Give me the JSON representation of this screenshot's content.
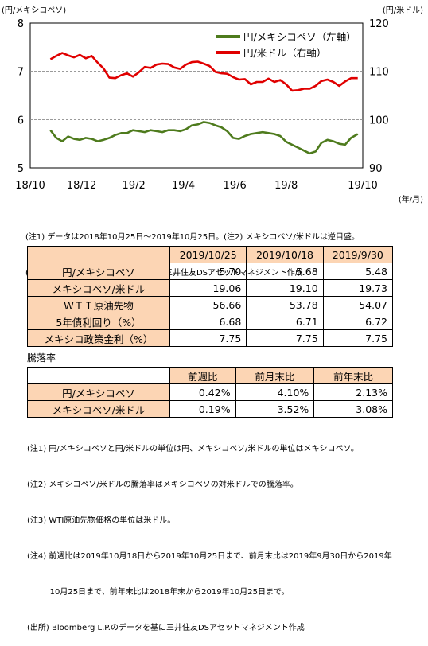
{
  "chart_data": {
    "type": "line",
    "left_axis": {
      "unit_label": "(円/メキシコペソ)",
      "ticks": [
        5,
        6,
        7,
        8
      ],
      "ylim": [
        5,
        8
      ]
    },
    "right_axis": {
      "unit_label": "(円/米ドル)",
      "ticks": [
        90,
        100,
        110,
        120
      ],
      "ylim": [
        90,
        120
      ]
    },
    "x_axis": {
      "unit_label": "(年/月)",
      "ticks": [
        "18/10",
        "18/12",
        "19/2",
        "19/4",
        "19/6",
        "19/8",
        "19/10"
      ]
    },
    "grid": "dashed horizontal at 6 and 7 (left axis)",
    "legend_position": "top-right",
    "series": [
      {
        "name": "円/メキシコペソ（左軸）",
        "axis": "left",
        "color": "#4e7b1d",
        "x": [
          "2018-10-25",
          "2018-11-01",
          "2018-11-08",
          "2018-11-15",
          "2018-11-22",
          "2018-11-29",
          "2018-12-06",
          "2018-12-13",
          "2018-12-20",
          "2018-12-27",
          "2019-01-03",
          "2019-01-10",
          "2019-01-17",
          "2019-01-24",
          "2019-01-31",
          "2019-02-07",
          "2019-02-14",
          "2019-02-21",
          "2019-02-28",
          "2019-03-07",
          "2019-03-14",
          "2019-03-21",
          "2019-03-28",
          "2019-04-04",
          "2019-04-11",
          "2019-04-18",
          "2019-04-25",
          "2019-05-02",
          "2019-05-09",
          "2019-05-16",
          "2019-05-23",
          "2019-05-30",
          "2019-06-06",
          "2019-06-13",
          "2019-06-20",
          "2019-06-27",
          "2019-07-04",
          "2019-07-11",
          "2019-07-18",
          "2019-07-25",
          "2019-08-01",
          "2019-08-08",
          "2019-08-15",
          "2019-08-22",
          "2019-08-29",
          "2019-09-05",
          "2019-09-12",
          "2019-09-19",
          "2019-09-26",
          "2019-10-03",
          "2019-10-10",
          "2019-10-17",
          "2019-10-25"
        ],
        "values": [
          5.78,
          5.62,
          5.55,
          5.65,
          5.6,
          5.58,
          5.62,
          5.6,
          5.55,
          5.58,
          5.62,
          5.68,
          5.72,
          5.72,
          5.78,
          5.76,
          5.74,
          5.78,
          5.76,
          5.74,
          5.78,
          5.78,
          5.76,
          5.8,
          5.88,
          5.9,
          5.95,
          5.93,
          5.88,
          5.84,
          5.76,
          5.62,
          5.6,
          5.66,
          5.7,
          5.72,
          5.74,
          5.72,
          5.7,
          5.66,
          5.54,
          5.48,
          5.42,
          5.36,
          5.3,
          5.34,
          5.52,
          5.58,
          5.55,
          5.5,
          5.48,
          5.62,
          5.7
        ]
      },
      {
        "name": "円/米ドル（右軸）",
        "axis": "right",
        "color": "#e00000",
        "x": [
          "2018-10-25",
          "2018-11-01",
          "2018-11-08",
          "2018-11-15",
          "2018-11-22",
          "2018-11-29",
          "2018-12-06",
          "2018-12-13",
          "2018-12-20",
          "2018-12-27",
          "2019-01-03",
          "2019-01-10",
          "2019-01-17",
          "2019-01-24",
          "2019-01-31",
          "2019-02-07",
          "2019-02-14",
          "2019-02-21",
          "2019-02-28",
          "2019-03-07",
          "2019-03-14",
          "2019-03-21",
          "2019-03-28",
          "2019-04-04",
          "2019-04-11",
          "2019-04-18",
          "2019-04-25",
          "2019-05-02",
          "2019-05-09",
          "2019-05-16",
          "2019-05-23",
          "2019-05-30",
          "2019-06-06",
          "2019-06-13",
          "2019-06-20",
          "2019-06-27",
          "2019-07-04",
          "2019-07-11",
          "2019-07-18",
          "2019-07-25",
          "2019-08-01",
          "2019-08-08",
          "2019-08-15",
          "2019-08-22",
          "2019-08-29",
          "2019-09-05",
          "2019-09-12",
          "2019-09-19",
          "2019-09-26",
          "2019-10-03",
          "2019-10-10",
          "2019-10-17",
          "2019-10-25"
        ],
        "values": [
          112.5,
          113.2,
          113.8,
          113.3,
          112.9,
          113.4,
          112.7,
          113.2,
          111.8,
          110.6,
          108.7,
          108.6,
          109.2,
          109.6,
          108.9,
          109.8,
          110.9,
          110.7,
          111.4,
          111.6,
          111.5,
          110.8,
          110.5,
          111.4,
          111.9,
          112.0,
          111.6,
          111.1,
          109.9,
          109.6,
          109.5,
          108.8,
          108.3,
          108.4,
          107.3,
          107.8,
          107.8,
          108.5,
          107.8,
          108.2,
          107.3,
          106.0,
          106.1,
          106.4,
          106.4,
          107.0,
          108.0,
          108.3,
          107.8,
          107.0,
          107.9,
          108.6,
          108.6
        ]
      }
    ]
  },
  "notes1": [
    "(注1) データは2018年10月25日～2019年10月25日。(注2) メキシコペソ/米ドルは逆目盛。",
    "(出所) Bloomberg L.P.のデータを基に三井住友DSアセットマネジメント作成"
  ],
  "table1": {
    "columns": [
      "2019/10/25",
      "2019/10/18",
      "2019/9/30"
    ],
    "rows": [
      {
        "label": "円/メキシコペソ",
        "values": [
          "5.70",
          "5.68",
          "5.48"
        ]
      },
      {
        "label": "メキシコペソ/米ドル",
        "values": [
          "19.06",
          "19.10",
          "19.73"
        ]
      },
      {
        "label": "ＷＴＩ原油先物",
        "values": [
          "56.66",
          "53.78",
          "54.07"
        ]
      },
      {
        "label": "5年債利回り（%）",
        "values": [
          "6.68",
          "6.71",
          "6.72"
        ]
      },
      {
        "label": "メキシコ政策金利（%）",
        "values": [
          "7.75",
          "7.75",
          "7.75"
        ]
      }
    ]
  },
  "table2": {
    "caption": "騰落率",
    "columns": [
      "前週比",
      "前月末比",
      "前年末比"
    ],
    "rows": [
      {
        "label": "円/メキシコペソ",
        "values": [
          "0.42%",
          "4.10%",
          "2.13%"
        ]
      },
      {
        "label": "メキシコペソ/米ドル",
        "values": [
          "0.19%",
          "3.52%",
          "3.08%"
        ]
      }
    ]
  },
  "notes2": [
    "(注1) 円/メキシコペソと円/米ドルの単位は円、メキシコペソ/米ドルの単位はメキシコペソ。",
    "(注2) メキシコペソ/米ドルの騰落率はメキシコペソの対米ドルでの騰落率。",
    "(注3) WTI原油先物価格の単位は米ドル。",
    "(注4) 前週比は2019年10月18日から2019年10月25日まで、前月末比は2019年9月30日から2019年",
    "         10月25日まで、前年末比は2018年末から2019年10月25日まで。",
    "(出所) Bloomberg L.P.のデータを基に三井住友DSアセットマネジメント作成"
  ]
}
